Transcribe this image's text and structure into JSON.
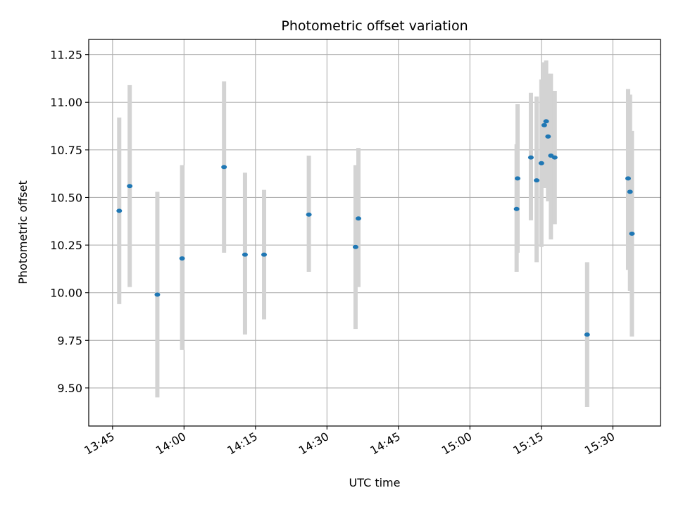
{
  "chart_data": {
    "type": "scatter",
    "title": "Photometric offset variation",
    "xlabel": "UTC time",
    "ylabel": "Photometric offset",
    "x_unit": "UTC time (HH:MM)",
    "xlim": [
      "13:40",
      "15:40"
    ],
    "ylim": [
      9.3,
      11.33
    ],
    "grid": true,
    "x_ticks": [
      "13:45",
      "14:00",
      "14:15",
      "14:30",
      "14:45",
      "15:00",
      "15:15",
      "15:30"
    ],
    "y_ticks": [
      9.5,
      9.75,
      10.0,
      10.25,
      10.5,
      10.75,
      11.0,
      11.25
    ],
    "y_tick_labels": [
      "9.50",
      "9.75",
      "10.00",
      "10.25",
      "10.50",
      "10.75",
      "11.00",
      "11.25"
    ],
    "colors": {
      "points": "#1f77b4",
      "error_bars": "#d3d3d3",
      "grid": "#b0b0b0"
    },
    "points": [
      {
        "x": "13:46:24",
        "y": 10.43,
        "lo": 9.94,
        "hi": 10.92
      },
      {
        "x": "13:48:36",
        "y": 10.56,
        "lo": 10.03,
        "hi": 11.09
      },
      {
        "x": "13:54:24",
        "y": 9.99,
        "lo": 9.45,
        "hi": 10.53
      },
      {
        "x": "13:59:36",
        "y": 10.18,
        "lo": 9.7,
        "hi": 10.67
      },
      {
        "x": "14:08:24",
        "y": 10.66,
        "lo": 10.21,
        "hi": 11.11
      },
      {
        "x": "14:12:48",
        "y": 10.2,
        "lo": 9.78,
        "hi": 10.63
      },
      {
        "x": "14:16:48",
        "y": 10.2,
        "lo": 9.86,
        "hi": 10.54
      },
      {
        "x": "14:26:12",
        "y": 10.41,
        "lo": 10.11,
        "hi": 10.72
      },
      {
        "x": "14:36:00",
        "y": 10.24,
        "lo": 9.81,
        "hi": 10.67
      },
      {
        "x": "14:36:36",
        "y": 10.39,
        "lo": 10.03,
        "hi": 10.76
      },
      {
        "x": "15:09:48",
        "y": 10.44,
        "lo": 10.11,
        "hi": 10.78
      },
      {
        "x": "15:10:00",
        "y": 10.6,
        "lo": 10.21,
        "hi": 10.99
      },
      {
        "x": "15:12:48",
        "y": 10.71,
        "lo": 10.38,
        "hi": 11.05
      },
      {
        "x": "15:14:00",
        "y": 10.59,
        "lo": 10.16,
        "hi": 11.03
      },
      {
        "x": "15:15:00",
        "y": 10.68,
        "lo": 10.24,
        "hi": 11.12
      },
      {
        "x": "15:15:36",
        "y": 10.88,
        "lo": 10.55,
        "hi": 11.21
      },
      {
        "x": "15:16:00",
        "y": 10.9,
        "lo": 10.57,
        "hi": 11.22
      },
      {
        "x": "15:16:24",
        "y": 10.82,
        "lo": 10.48,
        "hi": 11.15
      },
      {
        "x": "15:17:00",
        "y": 10.72,
        "lo": 10.28,
        "hi": 11.15
      },
      {
        "x": "15:17:48",
        "y": 10.71,
        "lo": 10.36,
        "hi": 11.06
      },
      {
        "x": "15:24:36",
        "y": 9.78,
        "lo": 9.4,
        "hi": 10.16
      },
      {
        "x": "15:33:12",
        "y": 10.6,
        "lo": 10.12,
        "hi": 11.07
      },
      {
        "x": "15:33:36",
        "y": 10.53,
        "lo": 10.01,
        "hi": 11.04
      },
      {
        "x": "15:34:00",
        "y": 10.31,
        "lo": 9.77,
        "hi": 10.85
      }
    ]
  }
}
